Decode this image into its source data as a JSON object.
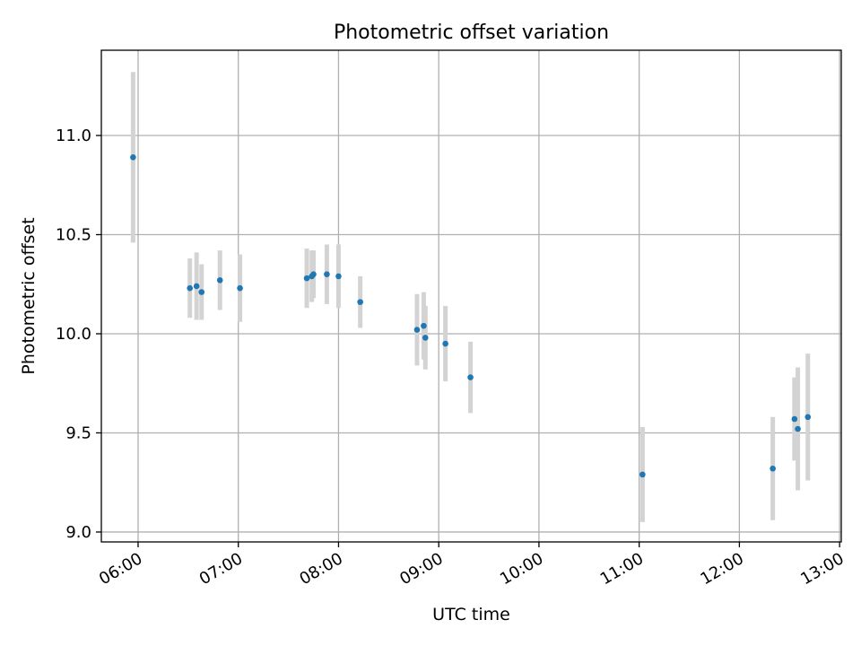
{
  "chart_data": {
    "type": "scatter",
    "title": "Photometric offset variation",
    "xlabel": "UTC time",
    "ylabel": "Photometric offset",
    "x_tick_labels": [
      "06:00",
      "07:00",
      "08:00",
      "09:00",
      "10:00",
      "11:00",
      "12:00",
      "13:00"
    ],
    "x_ticks": [
      "06:00",
      "07:00",
      "08:00",
      "09:00",
      "10:00",
      "11:00",
      "12:00",
      "13:00"
    ],
    "y_ticks": [
      9.0,
      9.5,
      10.0,
      10.5,
      11.0
    ],
    "y_tick_labels": [
      "9.0",
      "9.5",
      "10.0",
      "10.5",
      "11.0"
    ],
    "xlim": [
      "05:38",
      "13:01"
    ],
    "ylim": [
      8.95,
      11.43
    ],
    "grid": true,
    "marker_color": "#1f77b4",
    "errorbar_color": "#d3d3d3",
    "points": [
      {
        "x": "05:57",
        "y": 10.89,
        "err": 0.43
      },
      {
        "x": "06:31",
        "y": 10.23,
        "err": 0.15
      },
      {
        "x": "06:35",
        "y": 10.24,
        "err": 0.17
      },
      {
        "x": "06:38",
        "y": 10.21,
        "err": 0.14
      },
      {
        "x": "06:49",
        "y": 10.27,
        "err": 0.15
      },
      {
        "x": "07:01",
        "y": 10.23,
        "err": 0.17
      },
      {
        "x": "07:41",
        "y": 10.28,
        "err": 0.15
      },
      {
        "x": "07:44",
        "y": 10.29,
        "err": 0.13
      },
      {
        "x": "07:45",
        "y": 10.3,
        "err": 0.12
      },
      {
        "x": "07:53",
        "y": 10.3,
        "err": 0.15
      },
      {
        "x": "08:00",
        "y": 10.29,
        "err": 0.16
      },
      {
        "x": "08:13",
        "y": 10.16,
        "err": 0.13
      },
      {
        "x": "08:47",
        "y": 10.02,
        "err": 0.18
      },
      {
        "x": "08:51",
        "y": 10.04,
        "err": 0.17
      },
      {
        "x": "08:52",
        "y": 9.98,
        "err": 0.16
      },
      {
        "x": "09:04",
        "y": 9.95,
        "err": 0.19
      },
      {
        "x": "09:19",
        "y": 9.78,
        "err": 0.18
      },
      {
        "x": "11:02",
        "y": 9.29,
        "err": 0.24
      },
      {
        "x": "12:20",
        "y": 9.32,
        "err": 0.26
      },
      {
        "x": "12:33",
        "y": 9.57,
        "err": 0.21
      },
      {
        "x": "12:35",
        "y": 9.52,
        "err": 0.31
      },
      {
        "x": "12:41",
        "y": 9.58,
        "err": 0.32
      }
    ]
  }
}
